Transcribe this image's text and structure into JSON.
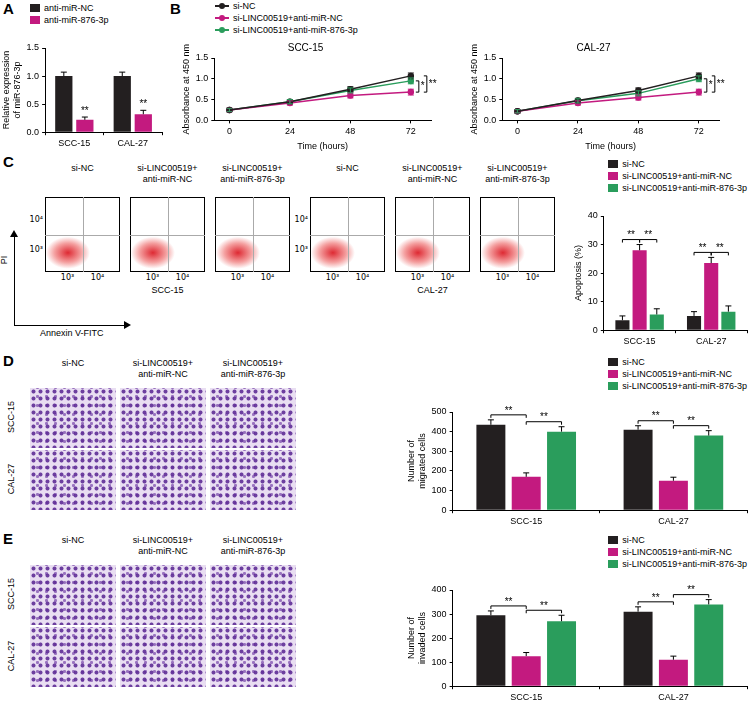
{
  "panel_labels": [
    "A",
    "B",
    "C",
    "D",
    "E"
  ],
  "chart_data": [
    {
      "type": "bar",
      "categories": [
        "SCC-15",
        "CAL-27"
      ],
      "y_label": "Relative expression\nof miR-876-3p",
      "ylim": [
        0,
        1.5
      ],
      "yticks": [
        {
          "value": 0,
          "label": "0.0"
        },
        {
          "value": 0.5,
          "label": "0.5"
        },
        {
          "value": 1.0,
          "label": "1.0"
        },
        {
          "value": 1.5,
          "label": "1.5"
        }
      ],
      "grid": false,
      "legend": "top left",
      "series": [
        {
          "name": "anti-miR-NC",
          "color": "#231f20",
          "values": [
            1.0,
            1.0
          ],
          "errors": [
            0.07,
            0.07
          ]
        },
        {
          "name": "anti-miR-876-3p",
          "color": "#c31a7f",
          "values": [
            0.22,
            0.32
          ],
          "errors": [
            0.05,
            0.07
          ]
        }
      ],
      "annotations": [
        {
          "text": "**",
          "category": "SCC-15",
          "series": [
            1
          ]
        },
        {
          "text": "**",
          "category": "CAL-27",
          "series": [
            1
          ]
        }
      ]
    },
    {
      "type": "line",
      "title": "SCC-15",
      "x": [
        0,
        24,
        48,
        72
      ],
      "x_label": "Time (hours)",
      "y_label": "Absorbance at 450 nm",
      "xlim": [
        -6,
        80
      ],
      "xticks": [
        0,
        24,
        48,
        72
      ],
      "ylim": [
        0,
        1.5
      ],
      "yticks": [
        {
          "value": 0,
          "label": "0.0"
        },
        {
          "value": 0.5,
          "label": "0.5"
        },
        {
          "value": 1.0,
          "label": "1.0"
        },
        {
          "value": 1.5,
          "label": "1.5"
        }
      ],
      "grid": false,
      "legend": "top left",
      "marker": "circle",
      "series": [
        {
          "name": "si-NC",
          "color": "#231f20",
          "values": [
            0.25,
            0.45,
            0.75,
            1.07
          ],
          "errors": [
            0.04,
            0.05,
            0.06,
            0.07
          ]
        },
        {
          "name": "si-LINC00519+anti-miR-NC",
          "color": "#c31a7f",
          "values": [
            0.25,
            0.42,
            0.6,
            0.68
          ],
          "errors": [
            0.04,
            0.05,
            0.06,
            0.07
          ]
        },
        {
          "name": "si-LINC00519+anti-miR-876-3p",
          "color": "#2a9d5c",
          "values": [
            0.25,
            0.45,
            0.72,
            0.95
          ],
          "errors": [
            0.04,
            0.05,
            0.06,
            0.07
          ]
        }
      ],
      "annotations": [
        {
          "text": "*",
          "x": 72,
          "series": [
            1,
            2
          ]
        },
        {
          "text": "**",
          "x": 72,
          "series": [
            0,
            1
          ]
        }
      ]
    },
    {
      "type": "line",
      "title": "CAL-27",
      "x": [
        0,
        24,
        48,
        72
      ],
      "x_label": "Time (hours)",
      "y_label": "Absorbance at 450 nm",
      "xlim": [
        -6,
        80
      ],
      "xticks": [
        0,
        24,
        48,
        72
      ],
      "ylim": [
        0,
        1.5
      ],
      "yticks": [
        {
          "value": 0,
          "label": "0.0"
        },
        {
          "value": 0.5,
          "label": "0.5"
        },
        {
          "value": 1.0,
          "label": "1.0"
        },
        {
          "value": 1.5,
          "label": "1.5"
        }
      ],
      "grid": false,
      "marker": "circle",
      "series": [
        {
          "name": "si-NC",
          "color": "#231f20",
          "values": [
            0.22,
            0.48,
            0.72,
            1.07
          ],
          "errors": [
            0.04,
            0.05,
            0.06,
            0.07
          ]
        },
        {
          "name": "si-LINC00519+anti-miR-NC",
          "color": "#c31a7f",
          "values": [
            0.22,
            0.42,
            0.55,
            0.68
          ],
          "errors": [
            0.04,
            0.05,
            0.06,
            0.07
          ]
        },
        {
          "name": "si-LINC00519+anti-miR-876-3p",
          "color": "#2a9d5c",
          "values": [
            0.22,
            0.47,
            0.65,
            1.0
          ],
          "errors": [
            0.04,
            0.05,
            0.06,
            0.07
          ]
        }
      ],
      "annotations": [
        {
          "text": "*",
          "x": 72,
          "series": [
            1,
            2
          ]
        },
        {
          "text": "**",
          "x": 72,
          "series": [
            0,
            1
          ]
        }
      ]
    },
    {
      "type": "bar",
      "categories": [
        "SCC-15",
        "CAL-27"
      ],
      "y_label": "Apoptosis (%)",
      "ylim": [
        0,
        40
      ],
      "yticks": [
        0,
        10,
        20,
        30,
        40
      ],
      "grid": false,
      "legend": "top right",
      "series": [
        {
          "name": "si-NC",
          "color": "#231f20",
          "values": [
            3.5,
            5
          ],
          "errors": [
            1.5,
            1.5
          ]
        },
        {
          "name": "si-LINC00519+anti-miR-NC",
          "color": "#c31a7f",
          "values": [
            28,
            23.5
          ],
          "errors": [
            2,
            2
          ]
        },
        {
          "name": "si-LINC00519+anti-miR-876-3p",
          "color": "#2a9d5c",
          "values": [
            5.5,
            6.5
          ],
          "errors": [
            2,
            2
          ]
        }
      ],
      "annotations": [
        {
          "text": "**",
          "category": "SCC-15",
          "series": [
            0,
            1
          ]
        },
        {
          "text": "**",
          "category": "SCC-15",
          "series": [
            1,
            2
          ]
        },
        {
          "text": "**",
          "category": "CAL-27",
          "series": [
            0,
            1
          ]
        },
        {
          "text": "**",
          "category": "CAL-27",
          "series": [
            1,
            2
          ]
        }
      ]
    },
    {
      "type": "bar",
      "categories": [
        "SCC-15",
        "CAL-27"
      ],
      "y_label": "Number of\nmigrated cells",
      "ylim": [
        0,
        500
      ],
      "yticks": [
        0,
        100,
        200,
        300,
        400,
        500
      ],
      "grid": false,
      "legend": "top right",
      "series": [
        {
          "name": "si-NC",
          "color": "#231f20",
          "values": [
            435,
            410
          ],
          "errors": [
            25,
            20
          ]
        },
        {
          "name": "si-LINC00519+anti-miR-NC",
          "color": "#c31a7f",
          "values": [
            170,
            150
          ],
          "errors": [
            20,
            18
          ]
        },
        {
          "name": "si-LINC00519+anti-miR-876-3p",
          "color": "#2a9d5c",
          "values": [
            400,
            380
          ],
          "errors": [
            25,
            25
          ]
        }
      ],
      "annotations": [
        {
          "text": "**",
          "category": "SCC-15",
          "series": [
            0,
            1
          ]
        },
        {
          "text": "**",
          "category": "SCC-15",
          "series": [
            1,
            2
          ]
        },
        {
          "text": "**",
          "category": "CAL-27",
          "series": [
            0,
            1
          ]
        },
        {
          "text": "**",
          "category": "CAL-27",
          "series": [
            1,
            2
          ]
        }
      ]
    },
    {
      "type": "bar",
      "categories": [
        "SCC-15",
        "CAL-27"
      ],
      "y_label": "Number of\ninvaded cells",
      "ylim": [
        0,
        400
      ],
      "yticks": [
        0,
        100,
        200,
        300,
        400
      ],
      "grid": false,
      "legend": "top right",
      "series": [
        {
          "name": "si-NC",
          "color": "#231f20",
          "values": [
            295,
            310
          ],
          "errors": [
            18,
            20
          ]
        },
        {
          "name": "si-LINC00519+anti-miR-NC",
          "color": "#c31a7f",
          "values": [
            125,
            110
          ],
          "errors": [
            15,
            15
          ]
        },
        {
          "name": "si-LINC00519+anti-miR-876-3p",
          "color": "#2a9d5c",
          "values": [
            270,
            340
          ],
          "errors": [
            25,
            20
          ]
        }
      ],
      "annotations": [
        {
          "text": "**",
          "category": "SCC-15",
          "series": [
            0,
            1
          ]
        },
        {
          "text": "**",
          "category": "SCC-15",
          "series": [
            1,
            2
          ]
        },
        {
          "text": "**",
          "category": "CAL-27",
          "series": [
            0,
            1
          ]
        },
        {
          "text": "**",
          "category": "CAL-27",
          "series": [
            1,
            2
          ]
        }
      ]
    }
  ],
  "flow_cytometry": {
    "x_label": "Annexin V-FITC",
    "y_label": "PI",
    "axis_ticks": [
      "10³",
      "10⁴"
    ],
    "groups": [
      {
        "name": "SCC-15",
        "conditions": [
          "si-NC",
          "si-LINC00519+\nanti-miR-NC",
          "si-LINC00519+\nanti-miR-876-3p"
        ]
      },
      {
        "name": "CAL-27",
        "conditions": [
          "si-NC",
          "si-LINC00519+\nanti-miR-NC",
          "si-LINC00519+\nanti-miR-876-3p"
        ]
      }
    ]
  },
  "micrographs": [
    {
      "rows": [
        "SCC-15",
        "CAL-27"
      ],
      "columns": [
        "si-NC",
        "si-LINC00519+\nanti-miR-NC",
        "si-LINC00519+\nanti-miR-876-3p"
      ]
    },
    {
      "rows": [
        "SCC-15",
        "CAL-27"
      ],
      "columns": [
        "si-NC",
        "si-LINC00519+\nanti-miR-NC",
        "si-LINC00519+\nanti-miR-876-3p"
      ]
    }
  ]
}
